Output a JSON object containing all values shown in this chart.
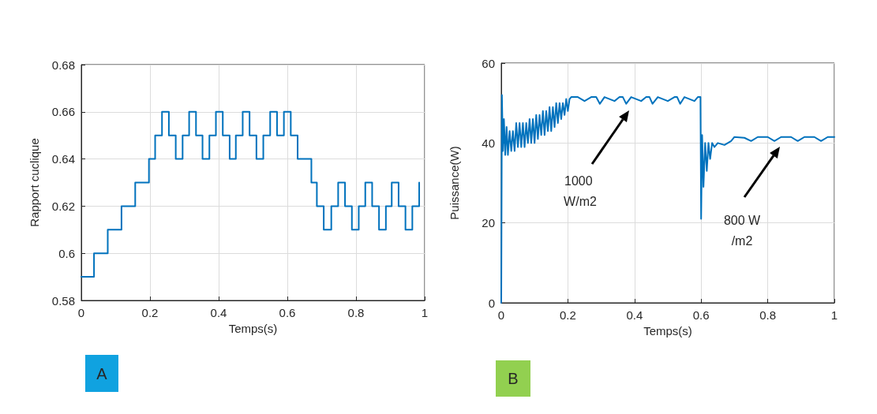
{
  "chart_data": [
    {
      "type": "step",
      "title": "A",
      "xlabel": "Temps(s)",
      "ylabel": "Rapport cuclique",
      "color": "#0072bd",
      "x": [
        0,
        0.037,
        0.077,
        0.117,
        0.157,
        0.197,
        0.215,
        0.235,
        0.255,
        0.275,
        0.295,
        0.314,
        0.334,
        0.353,
        0.373,
        0.392,
        0.412,
        0.432,
        0.45,
        0.47,
        0.49,
        0.51,
        0.53,
        0.55,
        0.57,
        0.59,
        0.61,
        0.63,
        0.67,
        0.686,
        0.706,
        0.728,
        0.748,
        0.768,
        0.788,
        0.808,
        0.827,
        0.847,
        0.867,
        0.887,
        0.904,
        0.924,
        0.944,
        0.964,
        0.984
      ],
      "values": [
        0.59,
        0.6,
        0.61,
        0.62,
        0.63,
        0.64,
        0.65,
        0.66,
        0.65,
        0.64,
        0.65,
        0.66,
        0.65,
        0.64,
        0.65,
        0.66,
        0.65,
        0.64,
        0.65,
        0.66,
        0.65,
        0.64,
        0.65,
        0.66,
        0.65,
        0.66,
        0.65,
        0.64,
        0.63,
        0.62,
        0.61,
        0.62,
        0.63,
        0.62,
        0.61,
        0.62,
        0.63,
        0.62,
        0.61,
        0.62,
        0.63,
        0.62,
        0.61,
        0.62,
        0.63
      ],
      "xlim": [
        0,
        1
      ],
      "xticks": [
        0,
        0.2,
        0.4,
        0.6,
        0.8,
        1
      ],
      "ylim": [
        0.58,
        0.68
      ],
      "yticks": [
        0.58,
        0.6,
        0.62,
        0.64,
        0.66,
        0.68
      ],
      "grid": true
    },
    {
      "type": "line",
      "title": "B",
      "xlabel": "Temps(s)",
      "ylabel": "Puissance(W)",
      "color": "#0072bd",
      "x": [
        0,
        0.002,
        0.005,
        0.008,
        0.012,
        0.016,
        0.02,
        0.025,
        0.03,
        0.035,
        0.04,
        0.045,
        0.05,
        0.055,
        0.06,
        0.065,
        0.07,
        0.075,
        0.08,
        0.085,
        0.09,
        0.095,
        0.1,
        0.105,
        0.11,
        0.115,
        0.12,
        0.125,
        0.13,
        0.135,
        0.14,
        0.145,
        0.15,
        0.155,
        0.16,
        0.165,
        0.17,
        0.175,
        0.18,
        0.185,
        0.19,
        0.195,
        0.2,
        0.205,
        0.21,
        0.23,
        0.25,
        0.27,
        0.285,
        0.296,
        0.31,
        0.34,
        0.355,
        0.365,
        0.375,
        0.39,
        0.42,
        0.435,
        0.445,
        0.454,
        0.47,
        0.5,
        0.52,
        0.528,
        0.537,
        0.55,
        0.58,
        0.59,
        0.598,
        0.6,
        0.603,
        0.607,
        0.612,
        0.617,
        0.622,
        0.627,
        0.633,
        0.64,
        0.65,
        0.67,
        0.69,
        0.7,
        0.73,
        0.75,
        0.77,
        0.8,
        0.82,
        0.84,
        0.87,
        0.89,
        0.91,
        0.94,
        0.96,
        0.98,
        1
      ],
      "values": [
        0,
        52,
        38,
        46,
        37,
        44,
        37,
        43,
        38,
        43,
        38,
        45,
        39,
        45,
        39,
        45,
        39,
        45,
        40,
        46,
        40,
        46,
        40,
        47,
        41,
        47,
        42,
        48,
        42,
        48,
        43,
        49,
        43,
        49,
        44,
        50,
        45,
        50,
        46,
        50,
        47,
        51,
        48,
        51,
        51.5,
        51.5,
        50.5,
        51.5,
        51.5,
        49.8,
        51.5,
        50.5,
        51.5,
        51.5,
        49.8,
        51.5,
        50.5,
        51.5,
        51.5,
        49.8,
        51.5,
        50.5,
        51.5,
        51.5,
        49.8,
        51.5,
        50.5,
        51.5,
        51.5,
        21,
        42,
        29,
        40,
        33,
        40,
        36,
        40,
        39,
        40,
        39.5,
        40.5,
        41.5,
        41.3,
        40.5,
        41.5,
        41.5,
        40.5,
        41.5,
        41.5,
        40.5,
        41.5,
        41.5,
        40.5,
        41.5,
        41.5
      ],
      "xlim": [
        0,
        1
      ],
      "xticks": [
        0,
        0.2,
        0.4,
        0.6,
        0.8,
        1
      ],
      "ylim": [
        0,
        60
      ],
      "yticks": [
        0,
        20,
        40,
        60
      ],
      "grid": true,
      "annotations": [
        "1000 W/m2",
        "800 W/m2"
      ]
    }
  ]
}
